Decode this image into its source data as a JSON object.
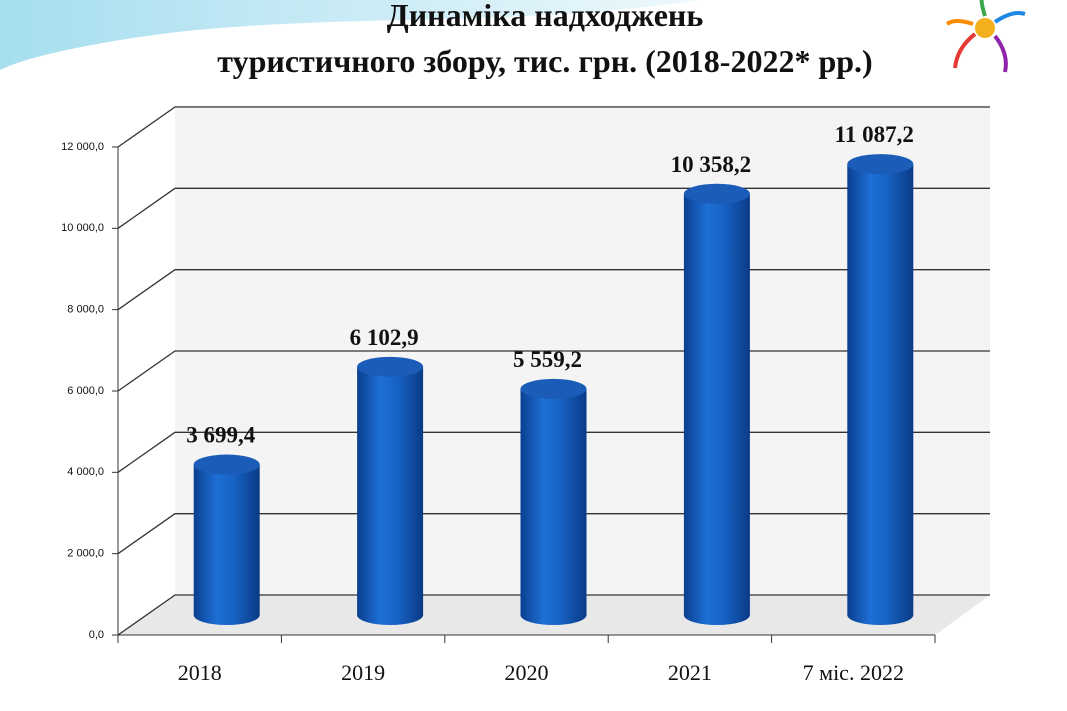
{
  "chart_data": {
    "type": "bar",
    "title": [
      "Динаміка надходжень",
      "туристичного збору, тис. грн. (2018-2022* рр.)"
    ],
    "categories": [
      "2018",
      "2019",
      "2020",
      "2021",
      "7 міс. 2022"
    ],
    "values": [
      3699.4,
      6102.9,
      5559.2,
      10358.2,
      11087.2
    ],
    "value_labels": [
      "3 699,4",
      "6 102,9",
      "5 559,2",
      "10 358,2",
      "11 087,2"
    ],
    "color": "#1565c0",
    "ylim": [
      0,
      12000
    ],
    "yticks": [
      {
        "value": 0,
        "label": "0,0"
      },
      {
        "value": 2000,
        "label": "2 000,0"
      },
      {
        "value": 4000,
        "label": "4 000,0"
      },
      {
        "value": 6000,
        "label": "6 000,0"
      },
      {
        "value": 8000,
        "label": "8 000,0"
      },
      {
        "value": 10000,
        "label": "10 000,0"
      },
      {
        "value": 12000,
        "label": "12 000,0"
      }
    ],
    "grid": true
  }
}
